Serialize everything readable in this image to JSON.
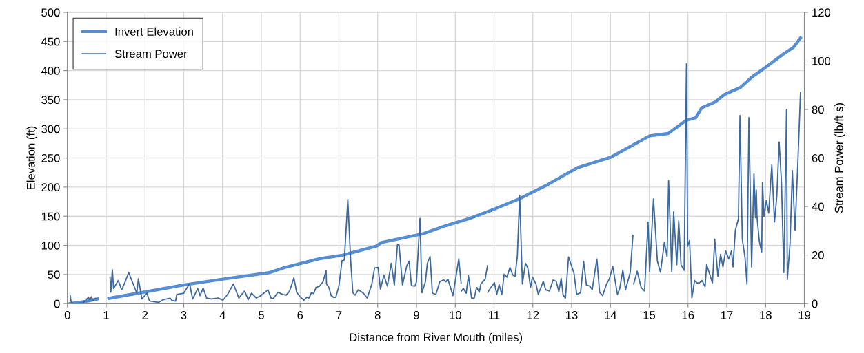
{
  "chart_data": {
    "type": "line",
    "xlabel": "Distance from River Mouth (miles)",
    "ylabel": "Elevation (ft)",
    "y2label": "Stream Power (lb/ft s)",
    "xlim": [
      0,
      19
    ],
    "xticks": [
      0,
      1,
      2,
      3,
      4,
      5,
      6,
      7,
      8,
      9,
      10,
      11,
      12,
      13,
      14,
      15,
      16,
      17,
      18,
      19
    ],
    "ylim": [
      0,
      500
    ],
    "yticks": [
      0,
      50,
      100,
      150,
      200,
      250,
      300,
      350,
      400,
      450,
      500
    ],
    "y2lim": [
      0,
      120
    ],
    "y2ticks": [
      0,
      20,
      40,
      60,
      80,
      100,
      120
    ],
    "grid": true,
    "legend": "top left",
    "marker": "none",
    "line_style": "solid",
    "series": [
      {
        "name": "Invert Elevation",
        "color": "#558ed5",
        "x": [
          0.07,
          0.3,
          0.5,
          0.78,
          null,
          1.07,
          2.0,
          3.0,
          4.01,
          5.2,
          5.61,
          6.5,
          7.09,
          7.98,
          8.1,
          9.17,
          9.76,
          10.36,
          11.0,
          11.66,
          12.4,
          13.14,
          14.0,
          15.01,
          15.49,
          15.96,
          16.2,
          16.35,
          16.7,
          16.94,
          17.35,
          17.65,
          18.07,
          18.45,
          18.72,
          18.9
        ],
        "values": [
          0,
          2,
          4,
          8,
          null,
          9,
          20,
          32,
          42,
          53,
          62,
          77,
          83,
          99,
          105,
          120,
          134,
          146,
          162,
          180,
          205,
          233,
          251,
          288,
          292,
          315,
          319,
          336,
          346,
          359,
          371,
          389,
          409,
          428,
          440,
          456
        ]
      },
      {
        "name": "Stream Power",
        "color": "#3c6aa0",
        "axis": "y2",
        "x": [
          0.07,
          0.1,
          0.17,
          0.41,
          0.5,
          0.54,
          0.58,
          0.62,
          0.66,
          0.7,
          0.73,
          null,
          1.1,
          1.12,
          1.16,
          1.19,
          1.31,
          1.4,
          1.49,
          1.58,
          1.79,
          1.83,
          1.92,
          2.05,
          2.11,
          2.14,
          2.35,
          2.47,
          2.56,
          2.65,
          2.7,
          2.79,
          2.82,
          3.0,
          3.15,
          3.23,
          3.36,
          3.42,
          3.5,
          3.59,
          3.71,
          3.89,
          4.01,
          4.13,
          4.28,
          4.42,
          4.57,
          4.66,
          4.75,
          4.87,
          4.99,
          5.17,
          5.25,
          5.31,
          5.43,
          5.55,
          5.64,
          5.73,
          5.84,
          5.91,
          6.0,
          6.1,
          6.17,
          6.23,
          6.29,
          6.35,
          6.41,
          6.5,
          6.59,
          6.67,
          6.68,
          6.74,
          6.8,
          6.86,
          6.92,
          7.0,
          7.08,
          7.14,
          7.23,
          7.3,
          7.36,
          7.42,
          7.5,
          7.63,
          7.73,
          7.85,
          7.92,
          8.01,
          8.07,
          8.16,
          8.25,
          8.35,
          8.43,
          8.51,
          8.55,
          8.64,
          8.75,
          8.81,
          8.87,
          8.96,
          9.0,
          9.09,
          9.14,
          9.23,
          9.28,
          9.35,
          9.41,
          9.5,
          9.6,
          9.7,
          9.76,
          9.81,
          9.94,
          10.09,
          10.15,
          null,
          10.16,
          10.21,
          10.28,
          10.34,
          10.42,
          10.49,
          10.55,
          10.62,
          10.66,
          10.77,
          10.83,
          null,
          10.84,
          10.92,
          11.01,
          11.07,
          11.13,
          11.2,
          11.26,
          11.33,
          11.41,
          11.48,
          11.54,
          11.6,
          11.66,
          11.73,
          11.81,
          11.87,
          11.94,
          11.99,
          12.08,
          12.14,
          12.27,
          12.33,
          12.43,
          12.52,
          12.6,
          12.67,
          12.73,
          12.78,
          12.84,
          12.92,
          13.06,
          13.13,
          13.23,
          13.31,
          13.38,
          13.47,
          13.53,
          13.65,
          13.72,
          13.8,
          13.9,
          13.97,
          14.06,
          14.18,
          14.24,
          14.32,
          14.39,
          14.51,
          14.58,
          null,
          14.6,
          14.69,
          14.79,
          14.88,
          14.97,
          15.01,
          15.11,
          15.21,
          15.29,
          15.39,
          15.46,
          15.5,
          15.58,
          15.63,
          15.71,
          15.76,
          15.82,
          15.9,
          15.96,
          15.99,
          16.04,
          16.1,
          16.17,
          16.23,
          16.29,
          16.36,
          16.44,
          16.48,
          16.63,
          16.69,
          16.77,
          16.84,
          16.9,
          16.97,
          17.05,
          17.12,
          17.16,
          17.22,
          17.3,
          17.34,
          17.4,
          17.47,
          17.52,
          17.57,
          17.64,
          17.7,
          17.74,
          17.76,
          17.78,
          17.84,
          17.9,
          17.92,
          17.96,
          18.02,
          18.08,
          18.16,
          18.23,
          18.29,
          18.35,
          18.41,
          18.47,
          18.54,
          18.56,
          18.63,
          18.69,
          18.76,
          18.84,
          18.9
        ],
        "values": [
          3.5,
          0.5,
          0,
          0.3,
          1.9,
          2.6,
          1.5,
          2.8,
          1.3,
          2.1,
          2.1,
          null,
          10.9,
          4.7,
          13.9,
          6.2,
          9.5,
          5.7,
          9,
          12.8,
          4.3,
          10.2,
          1.9,
          4.3,
          1.4,
          1,
          0.5,
          1.6,
          1.9,
          2.2,
          1.3,
          1,
          3.8,
          4.3,
          8.2,
          1.9,
          6.2,
          3.3,
          6.4,
          2.3,
          1.9,
          2.3,
          1.4,
          3.8,
          8.1,
          2.3,
          5.2,
          1.6,
          4.3,
          2.3,
          3.3,
          5.7,
          2.3,
          2.1,
          4.7,
          3.8,
          3.5,
          5.2,
          10.6,
          4.7,
          2.8,
          1.4,
          2.6,
          2.3,
          4.5,
          4.1,
          6.7,
          7.2,
          9,
          13.6,
          8.1,
          6.7,
          3.3,
          2.6,
          2.6,
          7.2,
          17.7,
          18,
          42.9,
          18.4,
          4.5,
          3.5,
          5.7,
          4.3,
          2.3,
          8.1,
          14.7,
          14.9,
          6,
          11.7,
          7.2,
          16.6,
          7.7,
          24.4,
          24.2,
          7.7,
          15.6,
          17.5,
          7.4,
          7.2,
          9,
          35.1,
          4.5,
          9,
          16.6,
          19.4,
          4.3,
          3.8,
          9,
          9.8,
          9,
          10.1,
          3.3,
          18.4,
          8.4,
          null,
          5.2,
          6.2,
          4.3,
          11.4,
          2.3,
          2.3,
          6.7,
          4.7,
          8.1,
          10.1,
          15.6,
          null,
          4.7,
          6.7,
          8.6,
          3.8,
          7.8,
          3.8,
          12.1,
          10.9,
          14.9,
          11.8,
          11.2,
          19.6,
          44.6,
          8.1,
          16.6,
          14.7,
          6.7,
          10.9,
          8.1,
          3.8,
          9.2,
          5.7,
          5.2,
          9.7,
          9.2,
          5,
          10.4,
          3.5,
          2.3,
          19.2,
          12.6,
          3.8,
          4.5,
          17.3,
          7.7,
          7.2,
          5.7,
          18.4,
          4.7,
          3.3,
          8.1,
          10.1,
          15.3,
          3.8,
          6.2,
          13.8,
          5.7,
          12.8,
          28.1,
          null,
          8.1,
          13.3,
          6.7,
          5.2,
          33.6,
          13.3,
          43.1,
          17.5,
          12.9,
          25.2,
          19.4,
          50.7,
          13.2,
          37.8,
          16,
          34,
          16,
          13.7,
          98.8,
          23.6,
          26,
          2.4,
          9.5,
          8.5,
          8.5,
          9.5,
          7,
          16,
          8.5,
          26.5,
          11.3,
          20.3,
          15.1,
          21.7,
          18.4,
          21.7,
          15.1,
          30.2,
          35,
          77.5,
          26.5,
          18.9,
          8,
          76.6,
          15.1,
          53.4,
          35.4,
          46.8,
          35.4,
          25.5,
          21.3,
          50,
          35.9,
          42.5,
          37.3,
          57.2,
          33.6,
          44.4,
          66.6,
          50,
          12.8,
          79.9,
          9.9,
          24.6,
          54.8,
          30.2,
          61.4,
          87
        ]
      }
    ]
  }
}
